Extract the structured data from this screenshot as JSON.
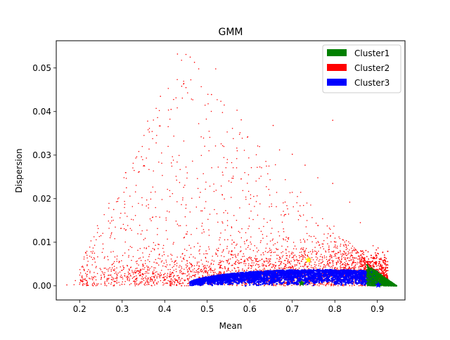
{
  "chart_data": {
    "type": "scatter",
    "title": "GMM",
    "xlabel": "Mean",
    "ylabel": "Dispersion",
    "xlim": [
      0.145,
      0.965
    ],
    "ylim": [
      -0.00325,
      0.05625
    ],
    "xticks": [
      0.2,
      0.3,
      0.4,
      0.5,
      0.6,
      0.7,
      0.8,
      0.9
    ],
    "xtick_labels": [
      "0.2",
      "0.3",
      "0.4",
      "0.5",
      "0.6",
      "0.7",
      "0.8",
      "0.9"
    ],
    "yticks": [
      0.0,
      0.01,
      0.02,
      0.03,
      0.04,
      0.05
    ],
    "ytick_labels": [
      "0.00",
      "0.01",
      "0.02",
      "0.03",
      "0.04",
      "0.05"
    ],
    "grid": false,
    "legend_placement": "upper-right",
    "series": [
      {
        "name": "Cluster1",
        "color": "#008000",
        "region": {
          "x_range": [
            0.87,
            0.945
          ],
          "y_max_approx": 0.004
        },
        "centroid": [
          0.722,
          0.0006
        ],
        "points": [
          [
            0.88,
            0.0012
          ],
          [
            0.89,
            0.0028
          ],
          [
            0.9,
            0.0033
          ],
          [
            0.91,
            0.0022
          ],
          [
            0.92,
            0.0012
          ],
          [
            0.93,
            0.0006
          ],
          [
            0.94,
            0.0002
          ],
          [
            0.895,
            0.0015
          ],
          [
            0.905,
            0.0008
          ],
          [
            0.915,
            0.0016
          ]
        ]
      },
      {
        "name": "Cluster2",
        "color": "#ff0000",
        "region": {
          "x_range": [
            0.17,
            0.925
          ],
          "y_max_approx": 0.053
        },
        "centroid": [
          0.738,
          0.0059
        ],
        "points": [
          [
            0.43,
            0.0532
          ],
          [
            0.45,
            0.0531
          ],
          [
            0.46,
            0.0525
          ],
          [
            0.47,
            0.0513
          ],
          [
            0.48,
            0.0498
          ],
          [
            0.52,
            0.0498
          ],
          [
            0.44,
            0.0458
          ],
          [
            0.45,
            0.0455
          ],
          [
            0.51,
            0.0439
          ],
          [
            0.54,
            0.0415
          ],
          [
            0.57,
            0.0403
          ],
          [
            0.58,
            0.0381
          ],
          [
            0.39,
            0.0435
          ],
          [
            0.415,
            0.0405
          ],
          [
            0.36,
            0.0378
          ],
          [
            0.38,
            0.0328
          ],
          [
            0.34,
            0.0262
          ],
          [
            0.31,
            0.0225
          ],
          [
            0.28,
            0.0175
          ],
          [
            0.25,
            0.0115
          ],
          [
            0.23,
            0.0075
          ],
          [
            0.21,
            0.0038
          ],
          [
            0.19,
            0.0012
          ],
          [
            0.17,
            0.0002
          ],
          [
            0.655,
            0.0368
          ],
          [
            0.67,
            0.0312
          ],
          [
            0.7,
            0.0302
          ],
          [
            0.73,
            0.0277
          ],
          [
            0.76,
            0.0248
          ],
          [
            0.795,
            0.0235
          ],
          [
            0.795,
            0.038
          ],
          [
            0.835,
            0.0192
          ],
          [
            0.86,
            0.0145
          ],
          [
            0.89,
            0.0092
          ],
          [
            0.91,
            0.006
          ],
          [
            0.925,
            0.0035
          ]
        ]
      },
      {
        "name": "Cluster3",
        "color": "#0000ff",
        "region": {
          "x_range": [
            0.46,
            0.9
          ],
          "y_max_approx": 0.0037
        },
        "centroid": [
          0.902,
          0.0002
        ],
        "points": [
          [
            0.46,
            0.0002
          ],
          [
            0.5,
            0.0012
          ],
          [
            0.55,
            0.0022
          ],
          [
            0.6,
            0.0029
          ],
          [
            0.65,
            0.0033
          ],
          [
            0.7,
            0.0036
          ],
          [
            0.75,
            0.0037
          ],
          [
            0.8,
            0.0036
          ],
          [
            0.85,
            0.0034
          ],
          [
            0.88,
            0.0025
          ],
          [
            0.6,
            0.0002
          ],
          [
            0.75,
            0.0001
          ]
        ]
      }
    ]
  }
}
